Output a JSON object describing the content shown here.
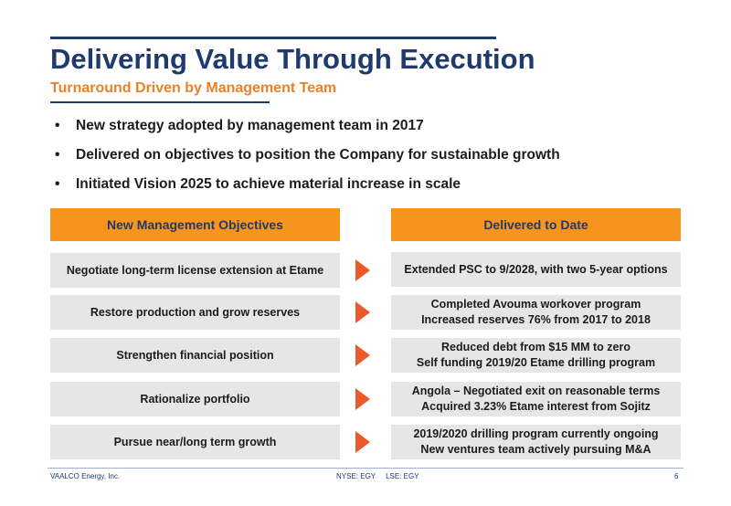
{
  "header": {
    "title": "Delivering Value Through Execution",
    "subtitle": "Turnaround Driven by Management Team"
  },
  "bullets": [
    "New strategy adopted by management team in 2017",
    "Delivered on objectives to position the Company for sustainable growth",
    "Initiated Vision 2025 to achieve material increase in scale"
  ],
  "table": {
    "left_header": "New Management Objectives",
    "right_header": "Delivered to Date",
    "rows": [
      {
        "objective": "Negotiate long-term license extension at Etame",
        "delivered": [
          "Extended PSC to 9/2028, with two 5-year options"
        ]
      },
      {
        "objective": "Restore production and grow reserves",
        "delivered": [
          "Completed Avouma workover program",
          "Increased reserves 76% from 2017 to 2018"
        ]
      },
      {
        "objective": "Strengthen financial position",
        "delivered": [
          "Reduced debt from $15 MM to zero",
          "Self funding 2019/20 Etame drilling program"
        ]
      },
      {
        "objective": "Rationalize portfolio",
        "delivered": [
          "Angola – Negotiated exit on reasonable terms",
          "Acquired 3.23% Etame interest from Sojitz"
        ]
      },
      {
        "objective": "Pursue near/long term growth",
        "delivered": [
          "2019/2020 drilling program currently ongoing",
          "New ventures team actively pursuing M&A"
        ]
      }
    ]
  },
  "footer": {
    "company": "VAALCO Energy, Inc.",
    "tickers": "NYSE: EGY     LSE: EGY",
    "page": "6"
  },
  "colors": {
    "navy": "#1f3a6d",
    "orange": "#f7941d",
    "arrow": "#ea5a2b",
    "box_gray": "#e6e6e6"
  }
}
